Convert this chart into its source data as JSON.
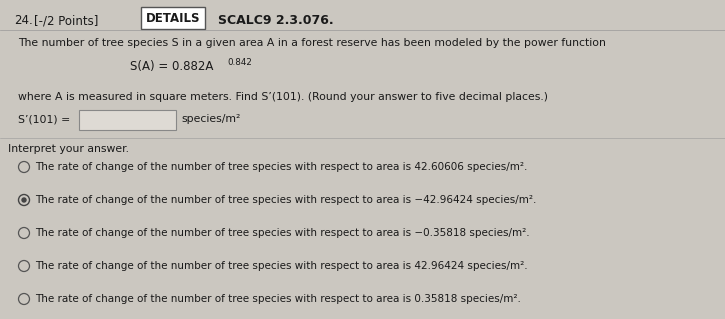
{
  "problem_number": "24.",
  "points": "[-/2 Points]",
  "details_label": "DETAILS",
  "scalc_label": "SCALC9 2.3.076.",
  "body_text1": "The number of tree species S in a given area A in a forest reserve has been modeled by the power function",
  "equation_base": "S(A) = 0.882A",
  "exponent": "0.842",
  "body_text2": "where A is measured in square meters. Find S’(101). (Round your answer to five decimal places.)",
  "prompt_label": "S’(101) =",
  "prompt_unit": "species/m²",
  "interpret_header": "Interpret your answer.",
  "options": [
    {
      "text": "The rate of change of the number of tree species with respect to area is 42.60606 species/m².",
      "selected": false
    },
    {
      "text": "The rate of change of the number of tree species with respect to area is −42.96424 species/m².",
      "selected": true
    },
    {
      "text": "The rate of change of the number of tree species with respect to area is −0.35818 species/m².",
      "selected": false
    },
    {
      "text": "The rate of change of the number of tree species with respect to area is 42.96424 species/m².",
      "selected": false
    },
    {
      "text": "The rate of change of the number of tree species with respect to area is 0.35818 species/m².",
      "selected": false
    }
  ],
  "bg_color": "#cbc7c0",
  "text_color": "#1a1a1a",
  "box_color": "#ffffff",
  "input_box_color": "#dedad4",
  "details_border_color": "#555555",
  "line_color": "#999999",
  "font_size_header": 8.5,
  "font_size_body": 7.8,
  "font_size_eq": 8.5,
  "font_size_options": 7.5
}
